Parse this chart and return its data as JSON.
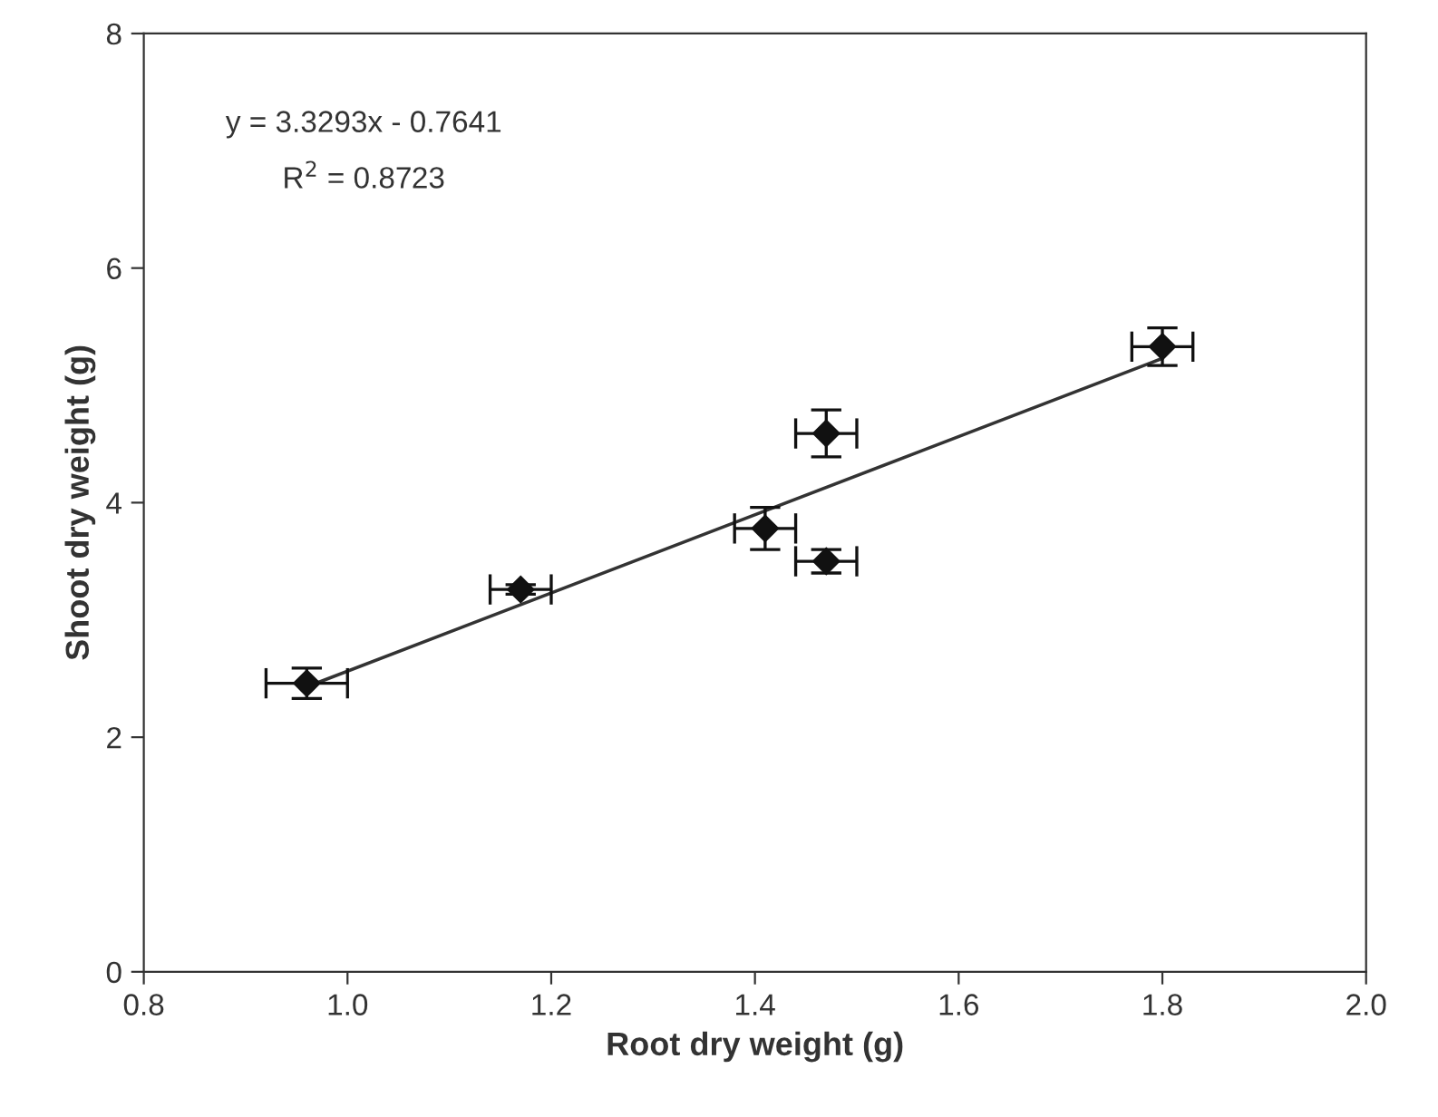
{
  "chart_data": {
    "type": "scatter",
    "xlabel": "Root dry weight (g)",
    "ylabel": "Shoot dry weight (g)",
    "annotations": [
      "y = 3.3293x - 0.7641",
      "R$^{2}$ = 0.8723"
    ],
    "xlim": [
      0.8,
      2.0
    ],
    "ylim": [
      0,
      8
    ],
    "xticks": [
      {
        "value": 0.8,
        "label": "0.8"
      },
      {
        "value": 1.0,
        "label": "1.0"
      },
      {
        "value": 1.2,
        "label": "1.2"
      },
      {
        "value": 1.4,
        "label": "1.4"
      },
      {
        "value": 1.6,
        "label": "1.6"
      },
      {
        "value": 1.8,
        "label": "1.8"
      },
      {
        "value": 2.0,
        "label": "2.0"
      }
    ],
    "yticks": [
      0,
      2,
      4,
      6,
      8
    ],
    "grid": false,
    "legend": false,
    "marker": "diamond",
    "series": [
      {
        "color": "#111111",
        "x": [
          0.96,
          1.17,
          1.41,
          1.47,
          1.47,
          1.8
        ],
        "values": [
          2.46,
          3.26,
          3.78,
          4.59,
          3.5,
          5.33
        ],
        "errors": [
          0.13,
          0.04,
          0.18,
          0.2,
          0.1,
          0.16
        ],
        "xerrors": [
          0.04,
          0.03,
          0.03,
          0.03,
          0.03,
          0.03
        ]
      },
      {
        "type": "line",
        "color": "#333333",
        "x": [
          0.96,
          1.8
        ],
        "values": [
          2.43,
          5.23
        ],
        "line_style": "solid",
        "marker": "none"
      }
    ]
  }
}
